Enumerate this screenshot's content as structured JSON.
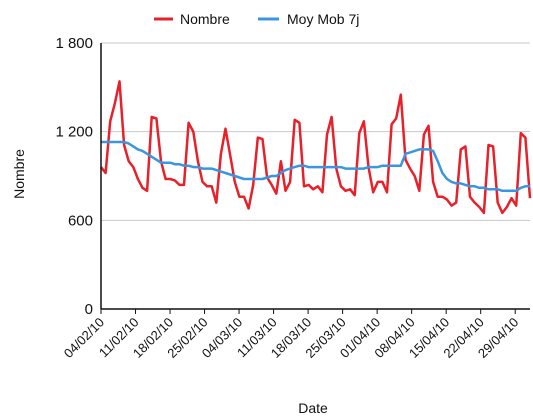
{
  "chart_data": {
    "type": "line",
    "xlabel": "Date",
    "ylabel": "Nombre",
    "ylim": [
      0,
      1800
    ],
    "yticks": [
      0,
      600,
      1200,
      1800
    ],
    "ytick_labels": [
      "0",
      "600",
      "1 200",
      "1 800"
    ],
    "grid": true,
    "legend_position": "top",
    "x_tick_labels": [
      "04/02/10",
      "11/02/10",
      "18/02/10",
      "25/02/10",
      "04/03/10",
      "11/03/10",
      "18/03/10",
      "25/03/10",
      "01/04/10",
      "08/04/10",
      "15/04/10",
      "22/04/10",
      "29/04/10"
    ],
    "x_start": "2010-02-04",
    "x_end": "2010-05-02",
    "series": [
      {
        "name": "Nombre",
        "color": "#e8202a",
        "values": [
          960,
          920,
          1270,
          1390,
          1540,
          1110,
          1000,
          960,
          880,
          820,
          800,
          1300,
          1290,
          1000,
          880,
          880,
          870,
          840,
          840,
          1260,
          1200,
          1000,
          860,
          830,
          830,
          720,
          1050,
          1220,
          1040,
          860,
          760,
          760,
          680,
          840,
          1160,
          1150,
          890,
          840,
          780,
          1000,
          800,
          860,
          1280,
          1260,
          830,
          840,
          810,
          830,
          790,
          1180,
          1300,
          950,
          830,
          800,
          810,
          770,
          1190,
          1270,
          960,
          790,
          860,
          860,
          790,
          1250,
          1290,
          1450,
          1010,
          950,
          900,
          800,
          1180,
          1240,
          860,
          760,
          760,
          740,
          700,
          720,
          1080,
          1100,
          760,
          720,
          690,
          650,
          1110,
          1100,
          720,
          650,
          690,
          750,
          700,
          1190,
          1160,
          750
        ]
      },
      {
        "name": "Moy Mob 7j",
        "color": "#3a96e0",
        "values": [
          1130,
          1130,
          1130,
          1130,
          1130,
          1130,
          1120,
          1100,
          1080,
          1070,
          1050,
          1030,
          1010,
          990,
          990,
          990,
          980,
          980,
          970,
          970,
          960,
          960,
          950,
          950,
          950,
          940,
          930,
          920,
          910,
          900,
          890,
          880,
          880,
          880,
          880,
          880,
          890,
          900,
          900,
          920,
          940,
          950,
          960,
          970,
          970,
          960,
          960,
          960,
          960,
          960,
          960,
          960,
          960,
          950,
          950,
          950,
          950,
          950,
          960,
          960,
          960,
          970,
          970,
          970,
          970,
          970,
          1050,
          1060,
          1070,
          1080,
          1080,
          1080,
          1070,
          1000,
          920,
          880,
          860,
          850,
          850,
          840,
          830,
          830,
          820,
          820,
          810,
          810,
          810,
          800,
          800,
          800,
          800,
          820,
          830,
          830
        ]
      }
    ]
  }
}
